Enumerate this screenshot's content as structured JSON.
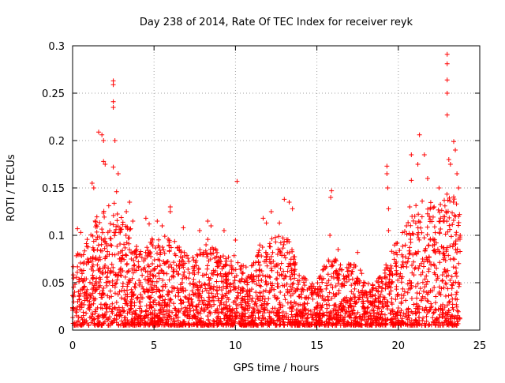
{
  "chart_data": {
    "type": "scatter",
    "title": "Day 238 of 2014, Rate Of TEC Index for receiver reyk",
    "xlabel": "GPS time / hours",
    "ylabel": "ROTI / TECUs",
    "xlim": [
      0,
      25
    ],
    "ylim": [
      0,
      0.3
    ],
    "x_ticks": [
      0,
      5,
      10,
      15,
      20,
      25
    ],
    "x_tick_labels": [
      "0",
      "5",
      "10",
      "15",
      "20",
      "25"
    ],
    "y_ticks": [
      0,
      0.05,
      0.1,
      0.15,
      0.2,
      0.25,
      0.3
    ],
    "y_tick_labels": [
      "0",
      "0.05",
      "0.1",
      "0.15",
      "0.2",
      "0.25",
      "0.3"
    ],
    "grid": true,
    "marker": "+",
    "marker_color": "#ff0000",
    "data_range_hours": [
      0,
      23.8
    ],
    "series": [
      {
        "name": "ROTI",
        "points": [
          [
            1.6,
            0.209
          ],
          [
            1.8,
            0.206
          ],
          [
            1.9,
            0.2
          ],
          [
            1.9,
            0.178
          ],
          [
            2.0,
            0.175
          ],
          [
            2.5,
            0.263
          ],
          [
            2.5,
            0.259
          ],
          [
            2.5,
            0.241
          ],
          [
            2.5,
            0.235
          ],
          [
            2.6,
            0.2
          ],
          [
            2.5,
            0.172
          ],
          [
            2.8,
            0.165
          ],
          [
            2.7,
            0.146
          ],
          [
            1.2,
            0.155
          ],
          [
            1.3,
            0.15
          ],
          [
            0.3,
            0.107
          ],
          [
            0.5,
            0.103
          ],
          [
            3.5,
            0.135
          ],
          [
            3.3,
            0.125
          ],
          [
            3.7,
            0.115
          ],
          [
            4.5,
            0.118
          ],
          [
            4.7,
            0.112
          ],
          [
            5.2,
            0.115
          ],
          [
            5.5,
            0.11
          ],
          [
            6.0,
            0.13
          ],
          [
            6.0,
            0.125
          ],
          [
            6.8,
            0.108
          ],
          [
            7.8,
            0.105
          ],
          [
            8.3,
            0.115
          ],
          [
            8.5,
            0.11
          ],
          [
            9.3,
            0.105
          ],
          [
            10.1,
            0.157
          ],
          [
            10.0,
            0.095
          ],
          [
            11.7,
            0.118
          ],
          [
            11.9,
            0.113
          ],
          [
            12.2,
            0.125
          ],
          [
            12.7,
            0.113
          ],
          [
            13.0,
            0.138
          ],
          [
            13.3,
            0.135
          ],
          [
            13.5,
            0.128
          ],
          [
            15.9,
            0.147
          ],
          [
            15.85,
            0.14
          ],
          [
            15.8,
            0.1
          ],
          [
            16.3,
            0.085
          ],
          [
            17.5,
            0.082
          ],
          [
            19.3,
            0.173
          ],
          [
            19.3,
            0.165
          ],
          [
            19.35,
            0.15
          ],
          [
            19.4,
            0.128
          ],
          [
            19.4,
            0.105
          ],
          [
            20.5,
            0.11
          ],
          [
            20.7,
            0.13
          ],
          [
            20.8,
            0.158
          ],
          [
            20.8,
            0.185
          ],
          [
            21.2,
            0.175
          ],
          [
            21.3,
            0.206
          ],
          [
            21.6,
            0.185
          ],
          [
            21.8,
            0.16
          ],
          [
            22.2,
            0.13
          ],
          [
            22.5,
            0.15
          ],
          [
            23.0,
            0.291
          ],
          [
            23.0,
            0.281
          ],
          [
            23.0,
            0.264
          ],
          [
            23.0,
            0.25
          ],
          [
            23.0,
            0.227
          ],
          [
            23.1,
            0.18
          ],
          [
            23.2,
            0.175
          ],
          [
            23.4,
            0.199
          ],
          [
            23.5,
            0.19
          ],
          [
            23.6,
            0.165
          ],
          [
            23.7,
            0.15
          ],
          [
            23.7,
            0.12
          ],
          [
            23.8,
            0.1
          ],
          [
            23.7,
            0.05
          ],
          [
            23.6,
            0.005
          ]
        ]
      }
    ],
    "envelope": {
      "note": "approximate upper envelope of the dense background cloud (hours, TECU)",
      "x": [
        0,
        0.5,
        1,
        1.5,
        2,
        2.5,
        3,
        3.5,
        4,
        4.5,
        5,
        5.5,
        6,
        6.5,
        7,
        7.5,
        8,
        8.5,
        9,
        9.5,
        10,
        10.5,
        11,
        11.5,
        12,
        12.5,
        13,
        13.5,
        14,
        14.5,
        15,
        15.5,
        16,
        16.5,
        17,
        17.5,
        18,
        18.5,
        19,
        19.5,
        20,
        20.5,
        21,
        21.5,
        22,
        22.5,
        23,
        23.5,
        23.8
      ],
      "y": [
        0.07,
        0.09,
        0.1,
        0.12,
        0.13,
        0.14,
        0.12,
        0.11,
        0.09,
        0.09,
        0.1,
        0.1,
        0.1,
        0.09,
        0.08,
        0.08,
        0.09,
        0.1,
        0.08,
        0.08,
        0.08,
        0.07,
        0.07,
        0.09,
        0.1,
        0.1,
        0.1,
        0.09,
        0.06,
        0.05,
        0.05,
        0.07,
        0.08,
        0.07,
        0.07,
        0.07,
        0.05,
        0.05,
        0.06,
        0.08,
        0.1,
        0.11,
        0.13,
        0.14,
        0.14,
        0.13,
        0.15,
        0.14,
        0.12
      ]
    }
  }
}
